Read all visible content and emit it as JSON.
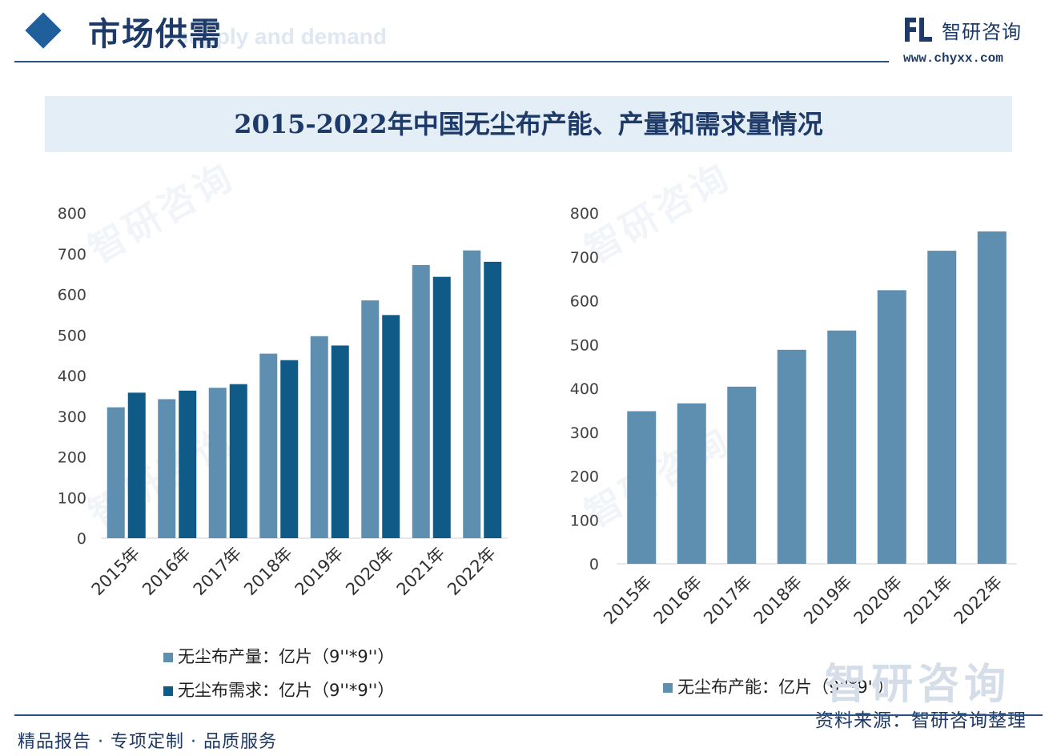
{
  "header": {
    "title": "市场供需",
    "subtitle": "supply and demand",
    "brand_name": "智研咨询",
    "brand_url": "www.chyxx.com"
  },
  "watermark": {
    "text": "智研咨询"
  },
  "footer": {
    "left_text": "精品报告 · 专项定制 · 品质服务",
    "source": "资料来源：智研咨询整理"
  },
  "colors": {
    "production": "#5f8fb0",
    "demand": "#0f5a86",
    "capacity": "#5f8fb0"
  },
  "chart_data": [
    {
      "type": "bar",
      "title": "2015-2022年中国无尘布产能、产量和需求量情况",
      "categories": [
        "2015年",
        "2016年",
        "2017年",
        "2018年",
        "2019年",
        "2020年",
        "2021年",
        "2022年"
      ],
      "ylim": [
        0,
        800
      ],
      "yticks": [
        "0",
        "100",
        "200",
        "300",
        "400",
        "500",
        "600",
        "700",
        "800"
      ],
      "grid": false,
      "legend_position": "bottom-left",
      "series": [
        {
          "name": "无尘布产量：亿片（9''*9''）",
          "values": [
            322,
            342,
            370,
            454,
            497,
            585,
            672,
            708
          ]
        },
        {
          "name": "无尘布需求：亿片（9''*9''）",
          "values": [
            358,
            363,
            379,
            438,
            474,
            549,
            643,
            680
          ]
        }
      ]
    },
    {
      "type": "bar",
      "title": "2015-2022年中国无尘布产能、产量和需求量情况",
      "categories": [
        "2015年",
        "2016年",
        "2017年",
        "2018年",
        "2019年",
        "2020年",
        "2021年",
        "2022年"
      ],
      "ylim": [
        0,
        800
      ],
      "yticks": [
        "0",
        "100",
        "200",
        "300",
        "400",
        "500",
        "600",
        "700",
        "800"
      ],
      "grid": false,
      "legend_position": "bottom",
      "series": [
        {
          "name": "无尘布产能：亿片（9''*9''）",
          "values": [
            348,
            366,
            404,
            488,
            532,
            624,
            714,
            758
          ]
        }
      ]
    }
  ]
}
